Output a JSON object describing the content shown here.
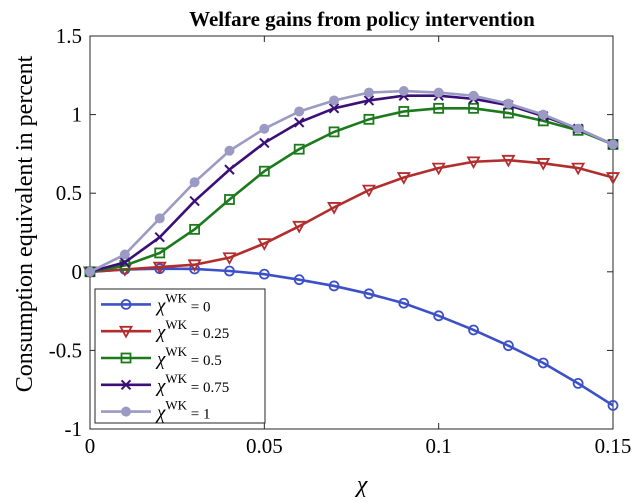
{
  "chart_data": {
    "type": "line",
    "title": "Welfare gains from policy intervention",
    "xlabel": "χ",
    "ylabel": "Consumption equivalent in percent",
    "xlim": [
      0,
      0.15
    ],
    "ylim": [
      -1,
      1.5
    ],
    "x_ticks": [
      "0",
      "0.05",
      "0.1",
      "0.15"
    ],
    "y_ticks": [
      "-1",
      "-0.5",
      "0",
      "0.5",
      "1",
      "1.5"
    ],
    "x": [
      0,
      0.01,
      0.02,
      0.03,
      0.04,
      0.05,
      0.06,
      0.07,
      0.08,
      0.09,
      0.1,
      0.11,
      0.12,
      0.13,
      0.14,
      0.15
    ],
    "grid": false,
    "legend_position": "bottom-left",
    "series": [
      {
        "name_symbol": "χ",
        "name_superscript": "WK",
        "name_value": " = 0",
        "color": "#3c50c8",
        "marker": "circle",
        "values": [
          0,
          0.015,
          0.02,
          0.018,
          0.005,
          -0.015,
          -0.05,
          -0.09,
          -0.14,
          -0.2,
          -0.28,
          -0.37,
          -0.47,
          -0.58,
          -0.71,
          -0.85
        ]
      },
      {
        "name_symbol": "χ",
        "name_superscript": "WK",
        "name_value": " = 0.25",
        "color": "#b22e2e",
        "marker": "triangle-down",
        "values": [
          0,
          0.015,
          0.03,
          0.045,
          0.09,
          0.18,
          0.29,
          0.41,
          0.52,
          0.6,
          0.66,
          0.7,
          0.71,
          0.69,
          0.66,
          0.6
        ]
      },
      {
        "name_symbol": "χ",
        "name_superscript": "WK",
        "name_value": " = 0.5",
        "color": "#1c7a1c",
        "marker": "square",
        "values": [
          0,
          0.04,
          0.12,
          0.27,
          0.46,
          0.64,
          0.78,
          0.89,
          0.97,
          1.02,
          1.04,
          1.04,
          1.01,
          0.96,
          0.9,
          0.81
        ]
      },
      {
        "name_symbol": "χ",
        "name_superscript": "WK",
        "name_value": " = 0.75",
        "color": "#3a1078",
        "marker": "x",
        "values": [
          0,
          0.06,
          0.22,
          0.45,
          0.65,
          0.82,
          0.95,
          1.04,
          1.09,
          1.12,
          1.12,
          1.1,
          1.06,
          0.99,
          0.91,
          0.81
        ]
      },
      {
        "name_symbol": "χ",
        "name_superscript": "WK",
        "name_value": " = 1",
        "color": "#9a9ac4",
        "marker": "circle-filled",
        "values": [
          0,
          0.11,
          0.34,
          0.57,
          0.77,
          0.91,
          1.02,
          1.09,
          1.14,
          1.15,
          1.14,
          1.12,
          1.07,
          1.0,
          0.91,
          0.81
        ]
      }
    ]
  }
}
